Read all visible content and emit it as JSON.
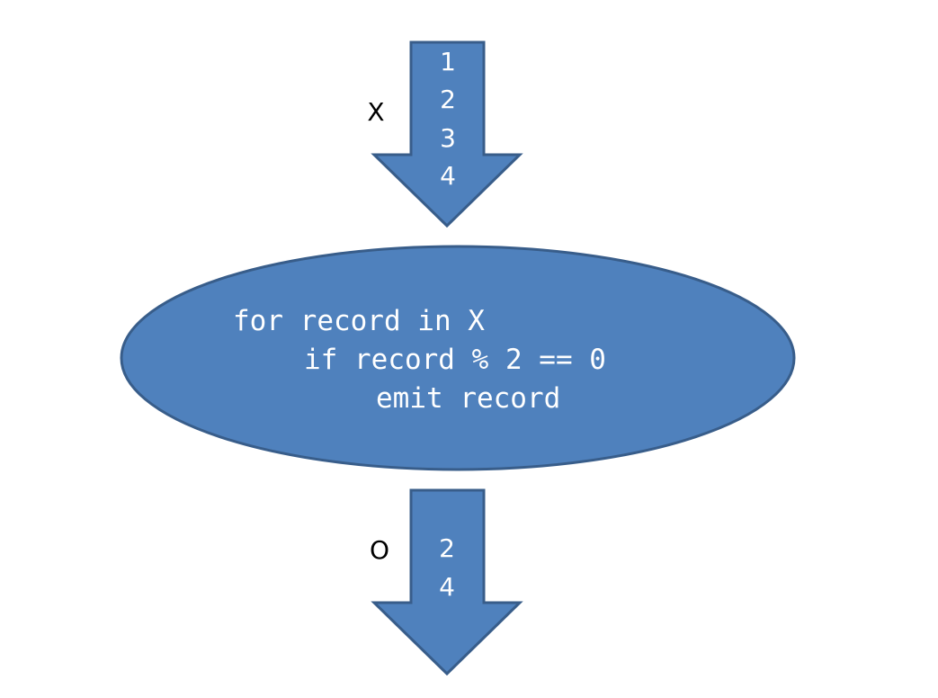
{
  "input_stream": {
    "label": "X",
    "values": [
      "1",
      "2",
      "3",
      "4"
    ]
  },
  "process": {
    "code_lines": [
      "for record in X",
      "if record % 2 == 0",
      "emit record"
    ]
  },
  "output_stream": {
    "label": "O",
    "values": [
      "2",
      "4"
    ]
  },
  "colors": {
    "shape_fill": "#4f81bd",
    "shape_stroke": "#385d8a",
    "inner_text": "#ffffff",
    "outer_text": "#000000"
  }
}
